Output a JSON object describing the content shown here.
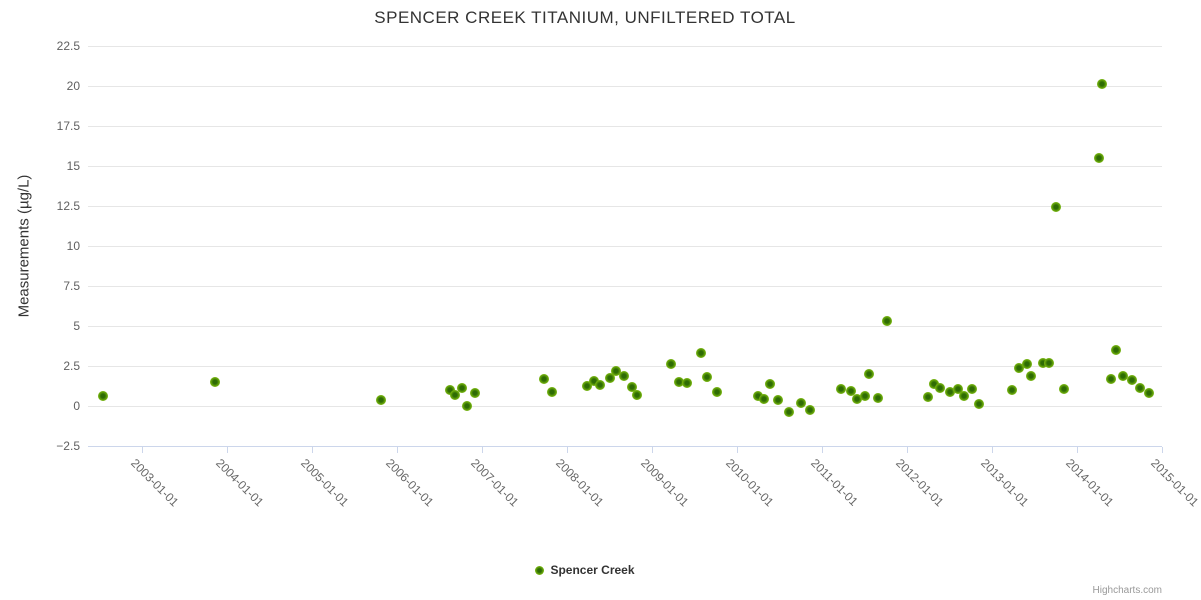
{
  "credits": "Highcharts.com",
  "colors": {
    "series_green": "#77b30a",
    "marker_core": "#2e6c04",
    "marker_mid": "#6fae0c",
    "marker_edge": "#8bc437",
    "grid": "#e6e6e6",
    "axis_line": "#ccd6eb",
    "title_text": "#333333",
    "axis_label_text": "#666666",
    "credits_text": "#999999"
  },
  "chart_data": {
    "type": "scatter",
    "title": "SPENCER CREEK TITANIUM, UNFILTERED TOTAL",
    "xlabel": "",
    "ylabel": "Measurements (µg/L)",
    "grid": "horizontal",
    "legend_position": "bottom-center",
    "x_axis": {
      "type": "datetime",
      "min": "2002-05-15",
      "max": "2015-01-01",
      "label_rotation": 45,
      "tick_labels": [
        "2003-01-01",
        "2004-01-01",
        "2005-01-01",
        "2006-01-01",
        "2007-01-01",
        "2008-01-01",
        "2009-01-01",
        "2010-01-01",
        "2011-01-01",
        "2012-01-01",
        "2013-01-01",
        "2014-01-01",
        "2015-01-01"
      ]
    },
    "y_axis": {
      "min": -2.5,
      "max": 22.5,
      "tick_interval": 2.5,
      "ticks": [
        {
          "value": 22.5,
          "label": "22.5"
        },
        {
          "value": 20,
          "label": "20"
        },
        {
          "value": 17.5,
          "label": "17.5"
        },
        {
          "value": 15,
          "label": "15"
        },
        {
          "value": 12.5,
          "label": "12.5"
        },
        {
          "value": 10,
          "label": "10"
        },
        {
          "value": 7.5,
          "label": "7.5"
        },
        {
          "value": 5,
          "label": "5"
        },
        {
          "value": 2.5,
          "label": "2.5"
        },
        {
          "value": 0,
          "label": "0"
        },
        {
          "value": -2.5,
          "label": "−2.5"
        }
      ]
    },
    "series": [
      {
        "name": "Spencer Creek",
        "color": "#77b30a",
        "points": [
          {
            "date": "2002-07-20",
            "value": 0.6
          },
          {
            "date": "2003-11-10",
            "value": 1.5
          },
          {
            "date": "2005-10-26",
            "value": 0.4
          },
          {
            "date": "2006-08-18",
            "value": 1.0
          },
          {
            "date": "2006-09-09",
            "value": 0.7
          },
          {
            "date": "2006-10-08",
            "value": 1.1
          },
          {
            "date": "2006-10-30",
            "value": 0.0
          },
          {
            "date": "2006-12-02",
            "value": 0.8
          },
          {
            "date": "2007-09-23",
            "value": 1.7
          },
          {
            "date": "2007-10-30",
            "value": 0.85
          },
          {
            "date": "2008-03-28",
            "value": 1.25
          },
          {
            "date": "2008-04-26",
            "value": 1.55
          },
          {
            "date": "2008-05-25",
            "value": 1.3
          },
          {
            "date": "2008-07-05",
            "value": 1.75
          },
          {
            "date": "2008-07-31",
            "value": 2.2
          },
          {
            "date": "2008-09-05",
            "value": 1.85
          },
          {
            "date": "2008-10-08",
            "value": 1.2
          },
          {
            "date": "2008-10-30",
            "value": 0.7
          },
          {
            "date": "2009-03-25",
            "value": 2.65
          },
          {
            "date": "2009-04-27",
            "value": 1.5
          },
          {
            "date": "2009-05-30",
            "value": 1.45
          },
          {
            "date": "2009-07-31",
            "value": 3.3
          },
          {
            "date": "2009-08-25",
            "value": 1.8
          },
          {
            "date": "2009-10-08",
            "value": 0.85
          },
          {
            "date": "2010-04-01",
            "value": 0.6
          },
          {
            "date": "2010-04-27",
            "value": 0.45
          },
          {
            "date": "2010-05-22",
            "value": 1.35
          },
          {
            "date": "2010-06-28",
            "value": 0.35
          },
          {
            "date": "2010-08-14",
            "value": -0.35
          },
          {
            "date": "2010-10-04",
            "value": 0.2
          },
          {
            "date": "2010-11-10",
            "value": -0.25
          },
          {
            "date": "2011-03-25",
            "value": 1.05
          },
          {
            "date": "2011-05-04",
            "value": 0.95
          },
          {
            "date": "2011-05-30",
            "value": 0.45
          },
          {
            "date": "2011-07-05",
            "value": 0.6
          },
          {
            "date": "2011-07-23",
            "value": 2.0
          },
          {
            "date": "2011-08-29",
            "value": 0.5
          },
          {
            "date": "2011-10-08",
            "value": 5.3
          },
          {
            "date": "2012-04-01",
            "value": 0.55
          },
          {
            "date": "2012-04-26",
            "value": 1.4
          },
          {
            "date": "2012-05-25",
            "value": 1.15
          },
          {
            "date": "2012-07-05",
            "value": 0.85
          },
          {
            "date": "2012-08-10",
            "value": 1.05
          },
          {
            "date": "2012-09-04",
            "value": 0.6
          },
          {
            "date": "2012-10-07",
            "value": 1.05
          },
          {
            "date": "2012-11-05",
            "value": 0.15
          },
          {
            "date": "2013-03-29",
            "value": 1.0
          },
          {
            "date": "2013-04-27",
            "value": 2.35
          },
          {
            "date": "2013-05-30",
            "value": 2.65
          },
          {
            "date": "2013-06-17",
            "value": 1.85
          },
          {
            "date": "2013-08-07",
            "value": 2.7
          },
          {
            "date": "2013-09-05",
            "value": 2.7
          },
          {
            "date": "2013-10-01",
            "value": 12.45
          },
          {
            "date": "2013-11-06",
            "value": 1.05
          },
          {
            "date": "2014-04-05",
            "value": 15.5
          },
          {
            "date": "2014-04-20",
            "value": 20.1
          },
          {
            "date": "2014-05-26",
            "value": 1.7
          },
          {
            "date": "2014-06-17",
            "value": 3.5
          },
          {
            "date": "2014-07-16",
            "value": 1.9
          },
          {
            "date": "2014-08-25",
            "value": 1.65
          },
          {
            "date": "2014-09-27",
            "value": 1.1
          },
          {
            "date": "2014-11-06",
            "value": 0.8
          }
        ]
      }
    ]
  }
}
